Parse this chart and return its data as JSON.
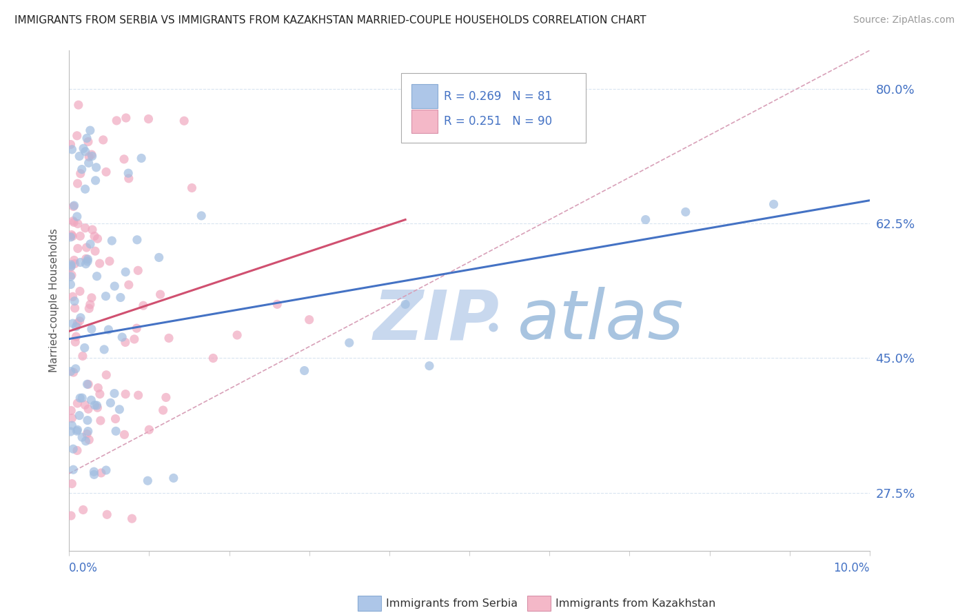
{
  "title": "IMMIGRANTS FROM SERBIA VS IMMIGRANTS FROM KAZAKHSTAN MARRIED-COUPLE HOUSEHOLDS CORRELATION CHART",
  "source": "Source: ZipAtlas.com",
  "ylabel_label": "Married-couple Households",
  "legend_serbia": {
    "R": 0.269,
    "N": 81,
    "color": "#adc6e8"
  },
  "legend_kazakhstan": {
    "R": 0.251,
    "N": 90,
    "color": "#f4b8c8"
  },
  "scatter_color_serbia": "#a0bde0",
  "scatter_color_kazakhstan": "#f0a8c0",
  "trendline_color_serbia": "#4472c4",
  "trendline_color_kazakhstan": "#d05070",
  "dashed_line_color": "#d8a0b8",
  "watermark_zip_color": "#c8d8ee",
  "watermark_atlas_color": "#a8c4e0",
  "background_color": "#ffffff",
  "grid_color": "#d8e4f0",
  "xlim": [
    0.0,
    10.0
  ],
  "ylim": [
    20.0,
    85.0
  ],
  "ytick_vals": [
    27.5,
    45.0,
    62.5,
    80.0
  ],
  "serbia_trendline": [
    0.0,
    47.5,
    10.0,
    65.5
  ],
  "kazakhstan_trendline": [
    0.0,
    48.5,
    4.2,
    63.0
  ],
  "dashed_trendline": [
    0.0,
    30.0,
    10.0,
    85.0
  ]
}
